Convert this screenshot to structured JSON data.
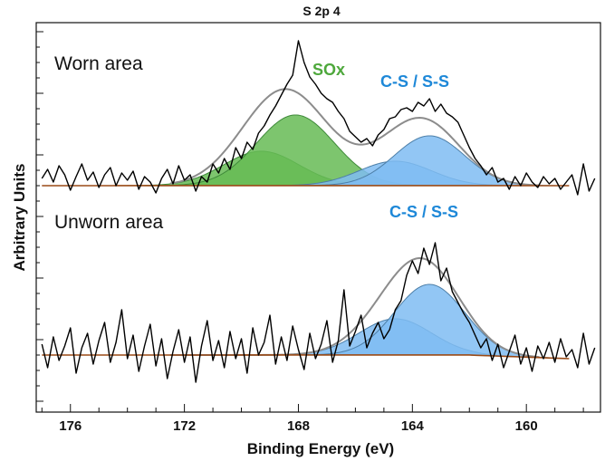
{
  "chart_data": {
    "type": "line",
    "title": "S 2p 4",
    "xlabel": "Binding Energy (eV)",
    "ylabel": "Arbitrary Units",
    "x_reversed": true,
    "xlim": [
      177.2,
      157.4
    ],
    "xticks": [
      176,
      172,
      168,
      164,
      160
    ],
    "xtick_labels": [
      "176",
      "172",
      "168",
      "164",
      "160"
    ],
    "colors": {
      "raw": "#000000",
      "envelope": "#8c8c8c",
      "background": "#9a4a16",
      "sox_fill": "#66bb55",
      "sox_stroke": "#3f8a3a",
      "cs_fill": "#7fbcf2",
      "cs_stroke": "#4d7fa8",
      "sox_label": "#4ea83c",
      "cs_label": "#1e88d8"
    },
    "panels": [
      {
        "label": "Worn area",
        "baseline_y": 0,
        "background": [
          [
            177,
            0
          ],
          [
            168,
            0.05
          ],
          [
            164,
            0.05
          ],
          [
            158.5,
            0
          ]
        ],
        "components": [
          {
            "label": "SOx",
            "family": "sox",
            "center": 169.3,
            "height": 38,
            "fwhm": 3.1
          },
          {
            "label": "SOx",
            "family": "sox",
            "center": 168.1,
            "height": 78,
            "fwhm": 3.2
          },
          {
            "label": "C-S / S-S",
            "family": "cs",
            "center": 164.6,
            "height": 27,
            "fwhm": 3.0
          },
          {
            "label": "C-S / S-S",
            "family": "cs",
            "center": 163.4,
            "height": 55,
            "fwhm": 2.9
          }
        ],
        "raw": [
          [
            177,
            8
          ],
          [
            176.8,
            18
          ],
          [
            176.6,
            4
          ],
          [
            176.4,
            22
          ],
          [
            176.2,
            12
          ],
          [
            176,
            -5
          ],
          [
            175.8,
            10
          ],
          [
            175.6,
            24
          ],
          [
            175.4,
            6
          ],
          [
            175.2,
            15
          ],
          [
            175,
            -2
          ],
          [
            174.8,
            12
          ],
          [
            174.6,
            20
          ],
          [
            174.4,
            0
          ],
          [
            174.2,
            14
          ],
          [
            174,
            6
          ],
          [
            173.8,
            16
          ],
          [
            173.6,
            -4
          ],
          [
            173.4,
            10
          ],
          [
            173.2,
            4
          ],
          [
            173,
            -8
          ],
          [
            172.8,
            8
          ],
          [
            172.6,
            18
          ],
          [
            172.4,
            2
          ],
          [
            172.2,
            22
          ],
          [
            172,
            6
          ],
          [
            171.8,
            12
          ],
          [
            171.6,
            -6
          ],
          [
            171.4,
            10
          ],
          [
            171.2,
            4
          ],
          [
            171,
            24
          ],
          [
            170.8,
            14
          ],
          [
            170.6,
            30
          ],
          [
            170.4,
            18
          ],
          [
            170.2,
            42
          ],
          [
            170,
            30
          ],
          [
            169.8,
            48
          ],
          [
            169.6,
            40
          ],
          [
            169.4,
            58
          ],
          [
            169.2,
            66
          ],
          [
            169,
            78
          ],
          [
            168.8,
            88
          ],
          [
            168.6,
            100
          ],
          [
            168.4,
            112
          ],
          [
            168.2,
            122
          ],
          [
            168,
            160
          ],
          [
            167.8,
            136
          ],
          [
            167.6,
            120
          ],
          [
            167.4,
            112
          ],
          [
            167.2,
            102
          ],
          [
            167,
            96
          ],
          [
            166.8,
            92
          ],
          [
            166.6,
            82
          ],
          [
            166.4,
            74
          ],
          [
            166.2,
            60
          ],
          [
            166,
            54
          ],
          [
            165.8,
            48
          ],
          [
            165.6,
            52
          ],
          [
            165.4,
            44
          ],
          [
            165.2,
            56
          ],
          [
            165,
            62
          ],
          [
            164.8,
            74
          ],
          [
            164.6,
            76
          ],
          [
            164.4,
            84
          ],
          [
            164.2,
            86
          ],
          [
            164,
            82
          ],
          [
            163.8,
            92
          ],
          [
            163.6,
            88
          ],
          [
            163.4,
            96
          ],
          [
            163.2,
            82
          ],
          [
            163,
            90
          ],
          [
            162.8,
            80
          ],
          [
            162.6,
            76
          ],
          [
            162.4,
            70
          ],
          [
            162.2,
            56
          ],
          [
            162,
            42
          ],
          [
            161.8,
            30
          ],
          [
            161.6,
            22
          ],
          [
            161.4,
            12
          ],
          [
            161.2,
            20
          ],
          [
            161,
            4
          ],
          [
            160.8,
            8
          ],
          [
            160.6,
            -4
          ],
          [
            160.4,
            10
          ],
          [
            160.2,
            0
          ],
          [
            160,
            14
          ],
          [
            159.8,
            4
          ],
          [
            159.6,
            -2
          ],
          [
            159.4,
            10
          ],
          [
            159.2,
            2
          ],
          [
            159,
            8
          ],
          [
            158.8,
            -4
          ],
          [
            158.6,
            4
          ],
          [
            158.4,
            12
          ],
          [
            158.2,
            -10
          ],
          [
            158,
            24
          ],
          [
            157.8,
            -6
          ],
          [
            157.6,
            8
          ]
        ]
      },
      {
        "label": "Unworn area",
        "baseline_y": 0,
        "background": [
          [
            177,
            0
          ],
          [
            168,
            0.02
          ],
          [
            162,
            0.02
          ],
          [
            158.5,
            -4
          ]
        ],
        "components": [
          {
            "label": "C-S / S-S",
            "family": "cs",
            "center": 164.6,
            "height": 40,
            "fwhm": 3.0
          },
          {
            "label": "C-S / S-S",
            "family": "cs",
            "center": 163.4,
            "height": 78,
            "fwhm": 2.9
          }
        ],
        "raw": [
          [
            177,
            12
          ],
          [
            176.8,
            -14
          ],
          [
            176.6,
            20
          ],
          [
            176.4,
            -6
          ],
          [
            176.2,
            10
          ],
          [
            176,
            30
          ],
          [
            175.8,
            -20
          ],
          [
            175.6,
            8
          ],
          [
            175.4,
            24
          ],
          [
            175.2,
            -10
          ],
          [
            175,
            16
          ],
          [
            174.8,
            36
          ],
          [
            174.6,
            -8
          ],
          [
            174.4,
            14
          ],
          [
            174.2,
            50
          ],
          [
            174,
            -4
          ],
          [
            173.8,
            22
          ],
          [
            173.6,
            -18
          ],
          [
            173.4,
            10
          ],
          [
            173.2,
            34
          ],
          [
            173,
            -12
          ],
          [
            172.8,
            18
          ],
          [
            172.6,
            -26
          ],
          [
            172.4,
            4
          ],
          [
            172.2,
            28
          ],
          [
            172,
            -8
          ],
          [
            171.8,
            20
          ],
          [
            171.6,
            -30
          ],
          [
            171.4,
            10
          ],
          [
            171.2,
            38
          ],
          [
            171,
            -6
          ],
          [
            170.8,
            16
          ],
          [
            170.6,
            -14
          ],
          [
            170.4,
            26
          ],
          [
            170.2,
            -4
          ],
          [
            170,
            18
          ],
          [
            169.8,
            -20
          ],
          [
            169.6,
            30
          ],
          [
            169.4,
            0
          ],
          [
            169.2,
            14
          ],
          [
            169,
            44
          ],
          [
            168.8,
            -10
          ],
          [
            168.6,
            20
          ],
          [
            168.4,
            -6
          ],
          [
            168.2,
            32
          ],
          [
            168,
            6
          ],
          [
            167.8,
            -16
          ],
          [
            167.6,
            24
          ],
          [
            167.4,
            -4
          ],
          [
            167.2,
            12
          ],
          [
            167,
            38
          ],
          [
            166.8,
            -8
          ],
          [
            166.6,
            16
          ],
          [
            166.4,
            72
          ],
          [
            166.2,
            10
          ],
          [
            166,
            26
          ],
          [
            165.8,
            44
          ],
          [
            165.6,
            8
          ],
          [
            165.4,
            24
          ],
          [
            165.2,
            36
          ],
          [
            165,
            18
          ],
          [
            164.8,
            28
          ],
          [
            164.6,
            50
          ],
          [
            164.4,
            60
          ],
          [
            164.2,
            88
          ],
          [
            164,
            104
          ],
          [
            163.8,
            90
          ],
          [
            163.6,
            118
          ],
          [
            163.4,
            100
          ],
          [
            163.2,
            124
          ],
          [
            163,
            82
          ],
          [
            162.8,
            96
          ],
          [
            162.6,
            70
          ],
          [
            162.4,
            58
          ],
          [
            162.2,
            46
          ],
          [
            162,
            36
          ],
          [
            161.8,
            22
          ],
          [
            161.6,
            8
          ],
          [
            161.4,
            18
          ],
          [
            161.2,
            -6
          ],
          [
            161,
            12
          ],
          [
            160.8,
            -14
          ],
          [
            160.6,
            4
          ],
          [
            160.4,
            22
          ],
          [
            160.2,
            -10
          ],
          [
            160,
            8
          ],
          [
            159.8,
            -18
          ],
          [
            159.6,
            10
          ],
          [
            159.4,
            -4
          ],
          [
            159.2,
            14
          ],
          [
            159,
            -8
          ],
          [
            158.8,
            18
          ],
          [
            158.6,
            -2
          ],
          [
            158.4,
            6
          ],
          [
            158.2,
            -14
          ],
          [
            158,
            24
          ],
          [
            157.8,
            -10
          ],
          [
            157.6,
            8
          ]
        ]
      }
    ],
    "annotations": [
      {
        "text": "SOx",
        "panel": 0,
        "color_key": "sox_label"
      },
      {
        "text": "C-S / S-S",
        "panel": 0,
        "color_key": "cs_label"
      },
      {
        "text": "C-S / S-S",
        "panel": 1,
        "color_key": "cs_label"
      }
    ]
  }
}
